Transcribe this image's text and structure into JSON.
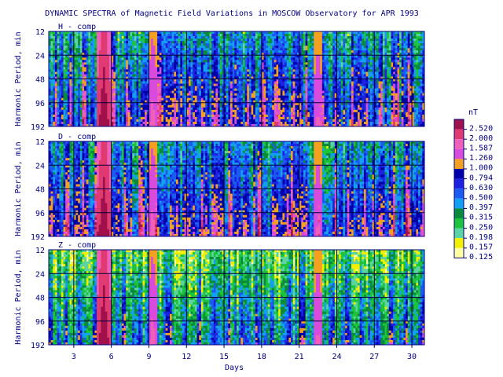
{
  "chart_data": {
    "type": "heatmap",
    "title": "DYNAMIC SPECTRA of Magnetic Field Variations in MOSCOW Observatory for APR 1993",
    "xlabel": "Days",
    "ylabel": "Harmonic Period, min",
    "x_range": [
      1,
      31
    ],
    "x_ticks": [
      "3",
      "6",
      "9",
      "12",
      "15",
      "18",
      "21",
      "24",
      "27",
      "30"
    ],
    "x_tick_values": [
      3,
      6,
      9,
      12,
      15,
      18,
      21,
      24,
      27,
      30
    ],
    "y_ticks": [
      "12",
      "24",
      "48",
      "96",
      "192"
    ],
    "y_scale": "log2",
    "panels": [
      {
        "label": "H - comp",
        "base_level": 4.2,
        "variability": 2.2
      },
      {
        "label": "D - comp",
        "base_level": 4.6,
        "variability": 2.3
      },
      {
        "label": "Z - comp",
        "base_level": 1.9,
        "variability": 1.7
      }
    ],
    "storm_days": [
      {
        "day": 5.4,
        "intensity": 1.0,
        "width": 0.55
      },
      {
        "day": 9.3,
        "intensity": 0.45,
        "width": 0.3
      },
      {
        "day": 22.5,
        "intensity": 0.4,
        "width": 0.3
      }
    ],
    "colorbar": {
      "unit": "nT",
      "levels": [
        "2.520",
        "2.000",
        "1.587",
        "1.260",
        "1.000",
        "0.794",
        "0.630",
        "0.500",
        "0.397",
        "0.315",
        "0.250",
        "0.198",
        "0.157",
        "0.125"
      ],
      "colors": [
        "#a0104a",
        "#e03a72",
        "#f060b8",
        "#d84bdc",
        "#f4a020",
        "#0000a8",
        "#1c22e0",
        "#1a5cf0",
        "#14a0f0",
        "#0a8a3a",
        "#1cc43c",
        "#5ad4a0",
        "#f0f000",
        "#ffffa0"
      ]
    },
    "grid": true
  }
}
